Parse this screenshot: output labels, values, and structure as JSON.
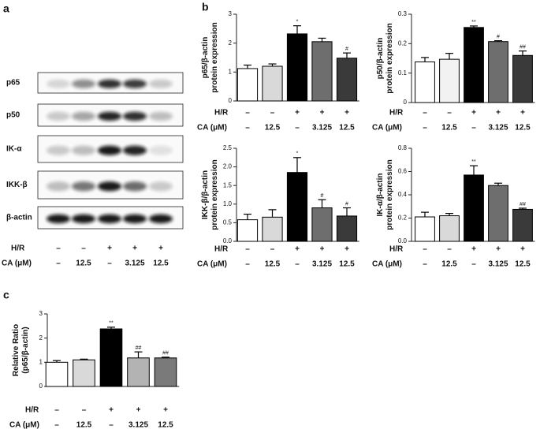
{
  "panel_labels": [
    "a",
    "b",
    "c"
  ],
  "blot": {
    "rows": [
      "p65",
      "p50",
      "IK-α",
      "IKK-β",
      "β-actin"
    ],
    "treatments": [
      {
        "name": "H/R",
        "values": [
          "–",
          "–",
          "+",
          "+",
          "+"
        ]
      },
      {
        "name": "CA (μM)",
        "values": [
          "–",
          "12.5",
          "–",
          "3.125",
          "12.5"
        ]
      }
    ]
  },
  "chart_data": [
    {
      "type": "bar",
      "ylabel": [
        "p65/β-actin",
        "protein expression"
      ],
      "treatments": [
        {
          "name": "H/R",
          "values": [
            "–",
            "–",
            "+",
            "+",
            "+"
          ]
        },
        {
          "name": "CA (μM)",
          "values": [
            "–",
            "12.5",
            "–",
            "3.125",
            "12.5"
          ]
        }
      ],
      "values": [
        1.12,
        1.2,
        2.32,
        2.05,
        1.48
      ],
      "errors": [
        0.12,
        0.08,
        0.28,
        0.12,
        0.18
      ],
      "annotations": [
        null,
        null,
        "*",
        null,
        "#"
      ],
      "colors": [
        "#ffffff",
        "#d9d9d9",
        "#000000",
        "#6e6e6e",
        "#3a3a3a"
      ],
      "ylim": [
        0,
        3
      ],
      "yticks": [
        0,
        1,
        2,
        3
      ]
    },
    {
      "type": "bar",
      "ylabel": [
        "p50/β-actin",
        "protein expression"
      ],
      "treatments": [
        {
          "name": "H/R",
          "values": [
            "–",
            "–",
            "+",
            "+",
            "+"
          ]
        },
        {
          "name": "CA (μM)",
          "values": [
            "–",
            "12.5",
            "–",
            "3.125",
            "12.5"
          ]
        }
      ],
      "values": [
        0.138,
        0.147,
        0.255,
        0.207,
        0.16
      ],
      "errors": [
        0.015,
        0.02,
        0.005,
        0.003,
        0.015
      ],
      "annotations": [
        null,
        null,
        "**",
        "#",
        "##"
      ],
      "colors": [
        "#ffffff",
        "#f2f2f2",
        "#000000",
        "#6e6e6e",
        "#3a3a3a"
      ],
      "ylim": [
        0,
        0.3
      ],
      "yticks": [
        0,
        0.1,
        0.2,
        0.3
      ]
    },
    {
      "type": "bar",
      "ylabel": [
        "IKK-β/β-actin",
        "protein expression"
      ],
      "treatments": [
        {
          "name": "H/R",
          "values": [
            "–",
            "–",
            "+",
            "+",
            "+"
          ]
        },
        {
          "name": "CA (μM)",
          "values": [
            "–",
            "12.5",
            "–",
            "3.125",
            "12.5"
          ]
        }
      ],
      "values": [
        0.58,
        0.65,
        1.85,
        0.9,
        0.68
      ],
      "errors": [
        0.15,
        0.2,
        0.4,
        0.22,
        0.22
      ],
      "annotations": [
        null,
        null,
        "*",
        "#",
        "#"
      ],
      "colors": [
        "#ffffff",
        "#d9d9d9",
        "#000000",
        "#6e6e6e",
        "#3a3a3a"
      ],
      "ylim": [
        0,
        2.5
      ],
      "yticks": [
        {
          "value": 0,
          "label": "0.0"
        },
        {
          "value": 0.5,
          "label": "0.5"
        },
        {
          "value": 1,
          "label": "1.0"
        },
        {
          "value": 1.5,
          "label": "1.5"
        },
        {
          "value": 2,
          "label": "2.0"
        },
        {
          "value": 2.5,
          "label": "2.5"
        }
      ]
    },
    {
      "type": "bar",
      "ylabel": [
        "IK-α/β-actin",
        "protein expression"
      ],
      "treatments": [
        {
          "name": "H/R",
          "values": [
            "–",
            "–",
            "+",
            "+",
            "+"
          ]
        },
        {
          "name": "CA (μM)",
          "values": [
            "–",
            "12.5",
            "–",
            "3.125",
            "12.5"
          ]
        }
      ],
      "values": [
        0.21,
        0.22,
        0.57,
        0.48,
        0.275
      ],
      "errors": [
        0.04,
        0.02,
        0.08,
        0.02,
        0.01
      ],
      "annotations": [
        null,
        null,
        "**",
        null,
        "##"
      ],
      "colors": [
        "#ffffff",
        "#d9d9d9",
        "#000000",
        "#6e6e6e",
        "#3a3a3a"
      ],
      "ylim": [
        0,
        0.8
      ],
      "yticks": [
        {
          "value": 0,
          "label": "0.0"
        },
        {
          "value": 0.2,
          "label": "0.2"
        },
        {
          "value": 0.4,
          "label": "0.4"
        },
        {
          "value": 0.6,
          "label": "0.6"
        },
        {
          "value": 0.8,
          "label": "0.8"
        }
      ]
    },
    {
      "type": "bar",
      "ylabel": [
        "Relative Ratio",
        "(p65/β-actin)"
      ],
      "treatments": [
        {
          "name": "H/R",
          "values": [
            "–",
            "–",
            "+",
            "+",
            "+"
          ]
        },
        {
          "name": "CA (μM)",
          "values": [
            "–",
            "12.5",
            "–",
            "3.125",
            "12.5"
          ]
        }
      ],
      "values": [
        1.0,
        1.1,
        2.38,
        1.18,
        1.18
      ],
      "errors": [
        0.07,
        0.03,
        0.07,
        0.25,
        0.03
      ],
      "annotations": [
        null,
        null,
        "**",
        "##",
        "##"
      ],
      "colors": [
        "#ffffff",
        "#d9d9d9",
        "#000000",
        "#b3b3b3",
        "#7a7a7a"
      ],
      "ylim": [
        0,
        3
      ],
      "yticks": [
        0,
        1,
        2,
        3
      ]
    }
  ]
}
